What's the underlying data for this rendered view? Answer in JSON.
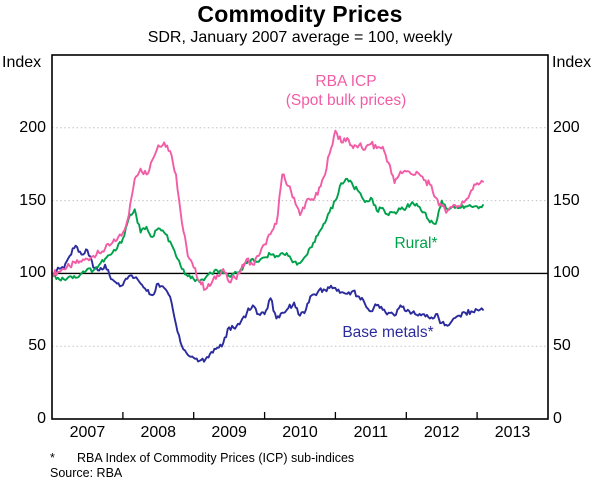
{
  "title": "Commodity Prices",
  "subtitle": "SDR, January 2007 average = 100, weekly",
  "axis": {
    "left_unit": "Index",
    "right_unit": "Index",
    "y_ticks": [
      200,
      150,
      100,
      50,
      0
    ],
    "x_tick_labels": [
      "2007",
      "2008",
      "2009",
      "2010",
      "2011",
      "2012",
      "2013"
    ]
  },
  "labels": {
    "icp_line1": "RBA ICP",
    "icp_line2": "(Spot bulk prices)",
    "rural": "Rural*",
    "base_metals": "Base metals*"
  },
  "footnote": {
    "marker": "*",
    "text": "RBA Index of Commodity Prices (ICP) sub-indices",
    "source": "Source: RBA"
  },
  "colors": {
    "icp": "#F25CA6",
    "rural": "#00A14B",
    "base_metals": "#2B2B9D",
    "grid_dotted": "#C3C3C3",
    "baseline": "#000000",
    "frame": "#000000"
  },
  "chart_data": {
    "type": "line",
    "title": "Commodity Prices",
    "subtitle": "SDR, January 2007 average = 100, weekly",
    "ylabel": "Index",
    "ylim": [
      0,
      250
    ],
    "xlim": [
      2007,
      2014
    ],
    "grid": "dotted horizontal at 50, 150, 200; solid black reference line at 100",
    "gridlines_dotted": [
      50,
      150,
      200
    ],
    "baseline_solid": 100,
    "legend_position": "labels beside lines",
    "x_start": 2007.0,
    "x_step_months": 1,
    "x_note": "monthly samples read from weekly chart, Jan 2007 to Feb 2013",
    "series": [
      {
        "name": "RBA ICP (Spot bulk prices)",
        "color": "#F25CA6",
        "jitter": 2.2,
        "values": [
          100,
          101,
          103,
          105,
          107,
          108,
          110,
          112,
          114,
          117,
          120,
          123,
          128,
          140,
          165,
          172,
          168,
          178,
          188,
          190,
          184,
          168,
          135,
          112,
          104,
          95,
          89,
          93,
          99,
          103,
          94,
          97,
          102,
          110,
          106,
          112,
          120,
          127,
          134,
          168,
          160,
          152,
          140,
          149,
          151,
          154,
          166,
          182,
          198,
          190,
          193,
          186,
          188,
          185,
          189,
          186,
          187,
          176,
          162,
          170,
          170,
          168,
          169,
          164,
          161,
          152,
          146,
          143,
          147,
          146,
          150,
          157,
          162,
          163
        ]
      },
      {
        "name": "Rural*",
        "color": "#00A14B",
        "jitter": 1.6,
        "values": [
          100,
          97,
          96,
          98,
          97,
          100,
          103,
          102,
          106,
          110,
          113,
          117,
          124,
          138,
          144,
          128,
          132,
          125,
          131,
          128,
          122,
          112,
          103,
          98,
          96,
          94,
          97,
          100,
          102,
          100,
          98,
          101,
          103,
          107,
          110,
          108,
          111,
          113,
          112,
          114,
          112,
          108,
          107,
          112,
          118,
          126,
          134,
          142,
          150,
          162,
          165,
          160,
          156,
          149,
          152,
          143,
          145,
          140,
          142,
          144,
          145,
          149,
          146,
          142,
          135,
          134,
          150,
          144,
          146,
          145,
          146,
          146,
          146,
          147
        ]
      },
      {
        "name": "Base metals*",
        "color": "#2B2B9D",
        "jitter": 1.8,
        "values": [
          100,
          104,
          103,
          112,
          119,
          113,
          116,
          104,
          102,
          106,
          96,
          93,
          92,
          98,
          97,
          93,
          88,
          85,
          93,
          90,
          84,
          65,
          50,
          44,
          42,
          40,
          41,
          46,
          49,
          52,
          63,
          62,
          67,
          73,
          78,
          72,
          72,
          83,
          69,
          73,
          76,
          80,
          71,
          75,
          85,
          87,
          89,
          90,
          90,
          87,
          86,
          88,
          84,
          79,
          74,
          78,
          75,
          73,
          71,
          78,
          74,
          73,
          71,
          72,
          69,
          72,
          66,
          64,
          69,
          71,
          73,
          74,
          75,
          75
        ]
      }
    ]
  }
}
